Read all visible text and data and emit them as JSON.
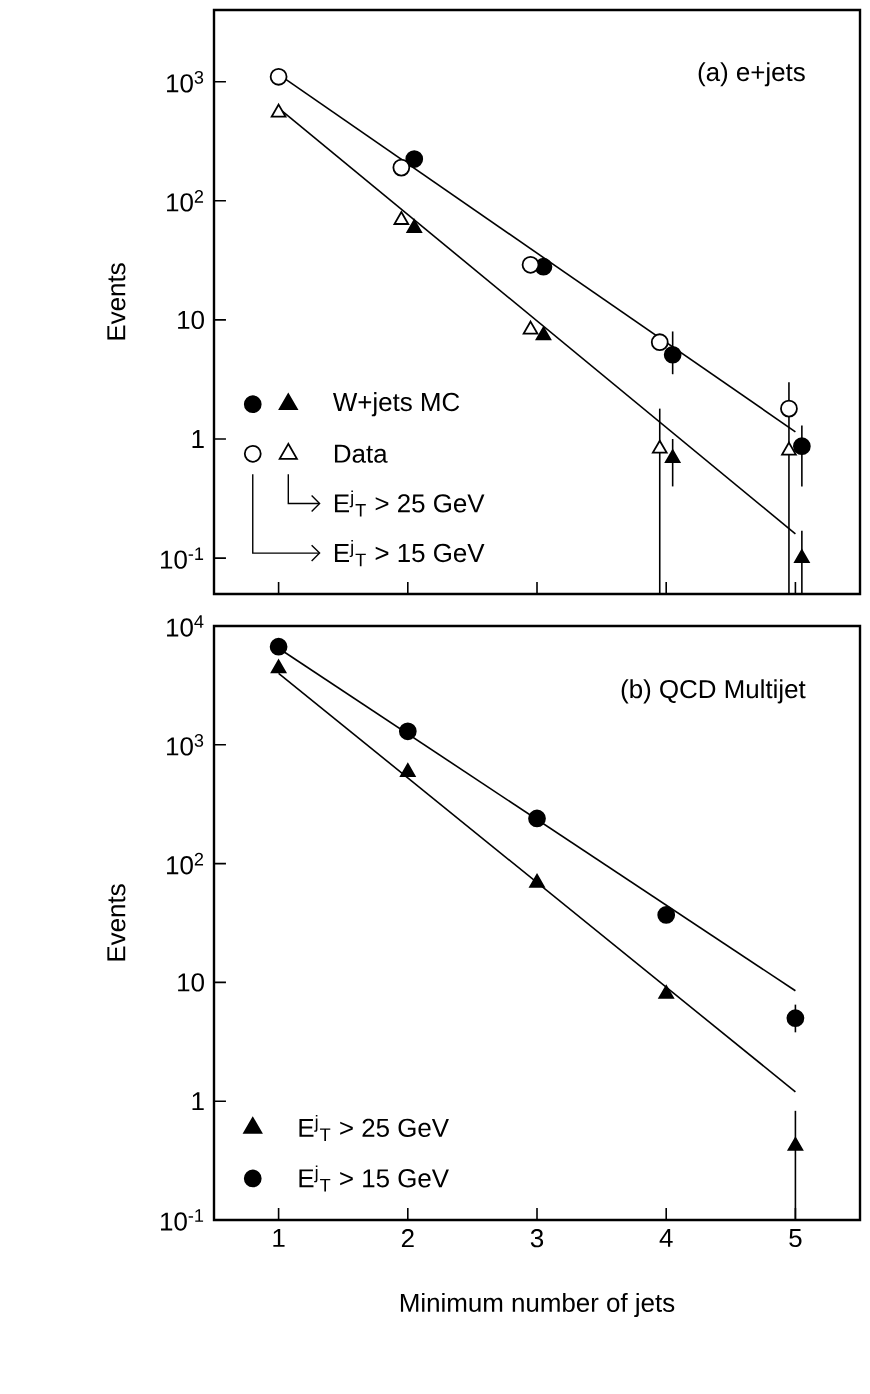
{
  "chart_data": [
    {
      "type": "scatter",
      "title": "(a) e+jets",
      "ylabel": "Events",
      "log": true,
      "legend": "bottom left",
      "tick_labels": "y",
      "xlim": [
        0.5,
        5.5
      ],
      "xticks": [
        1,
        2,
        3,
        4,
        5
      ],
      "ylim": [
        0.05,
        4000
      ],
      "yticks": [
        {
          "value": 0.1,
          "label": "10$^{-1}$"
        },
        1,
        10,
        {
          "value": 100,
          "label": "10$^{2}$"
        },
        {
          "value": 1000,
          "label": "10$^{3}$"
        }
      ],
      "annotations": [
        "E$^{j}$$_{T}$ > 25 GeV",
        "E$^{j}$$_{T}$ > 15 GeV"
      ],
      "series": [
        {
          "type": "line",
          "color": "#000000",
          "x": [
            1,
            5
          ],
          "values": [
            1150,
            1.15
          ]
        },
        {
          "type": "line",
          "color": "#000000",
          "x": [
            1,
            5
          ],
          "values": [
            600,
            0.16
          ]
        },
        {
          "color": "#000000",
          "marker": "circle",
          "x": [
            2.05,
            3.05,
            4.05,
            5.05
          ],
          "values": [
            224,
            28,
            5.1,
            0.87
          ],
          "errors": [
            null,
            null,
            [
              3.5,
              8
            ],
            [
              0.4,
              1.3
            ]
          ]
        },
        {
          "name": "W+jets MC",
          "color": "#000000",
          "marker": "triangle",
          "x": [
            2.05,
            3.05,
            4.05,
            5.05
          ],
          "values": [
            59,
            7.4,
            0.69,
            0.1
          ],
          "errors": [
            null,
            null,
            [
              0.4,
              1.0
            ],
            [
              0.05,
              0.17
            ]
          ]
        },
        {
          "color": "#ffffff",
          "marker": "circle",
          "x": [
            1,
            1.95,
            2.95,
            3.95,
            4.95
          ],
          "values": [
            1100,
            190,
            29,
            6.5,
            1.8
          ]
        },
        {
          "name": "Data",
          "color": "#ffffff",
          "marker": "triangle",
          "x": [
            1,
            1.95,
            2.95,
            3.95,
            4.95
          ],
          "values": [
            550,
            69,
            8.3,
            0.83,
            0.8
          ],
          "errors": [
            null,
            null,
            null,
            [
              0.05,
              1.8
            ],
            [
              0.05,
              3.0
            ]
          ]
        }
      ]
    },
    {
      "type": "scatter",
      "title": "(b) QCD Multijet",
      "ylabel": "Events",
      "xlabel": "Minimum number of jets",
      "log": true,
      "legend": "bottom left",
      "xlim": [
        0.5,
        5.5
      ],
      "xticks": [
        1,
        2,
        3,
        4,
        5
      ],
      "ylim": [
        0.1,
        10000
      ],
      "yticks": [
        {
          "value": 0.1,
          "label": "10$^{-1}$"
        },
        1,
        10,
        {
          "value": 100,
          "label": "10$^{2}$"
        },
        {
          "value": 1000,
          "label": "10$^{3}$"
        },
        {
          "value": 10000,
          "label": "10$^{4}$"
        }
      ],
      "series": [
        {
          "type": "line",
          "color": "#000000",
          "x": [
            1,
            5
          ],
          "values": [
            6500,
            8.5
          ]
        },
        {
          "type": "line",
          "color": "#000000",
          "x": [
            1,
            5
          ],
          "values": [
            4000,
            1.2
          ]
        },
        {
          "name": "E$^{j}$$_{T}$ > 25 GeV",
          "color": "#000000",
          "marker": "triangle",
          "x": [
            1,
            2,
            3,
            4,
            5
          ],
          "values": [
            4400,
            590,
            69,
            8,
            0.42
          ],
          "errors": [
            null,
            null,
            null,
            null,
            [
              0.1,
              0.83
            ]
          ]
        },
        {
          "name": "E$^{j}$$_{T}$ > 15 GeV",
          "color": "#000000",
          "marker": "circle",
          "x": [
            1,
            2,
            3,
            4,
            5
          ],
          "values": [
            6700,
            1300,
            240,
            37,
            5.0
          ],
          "errors": [
            null,
            null,
            null,
            null,
            [
              3.8,
              6.5
            ]
          ]
        }
      ]
    }
  ]
}
